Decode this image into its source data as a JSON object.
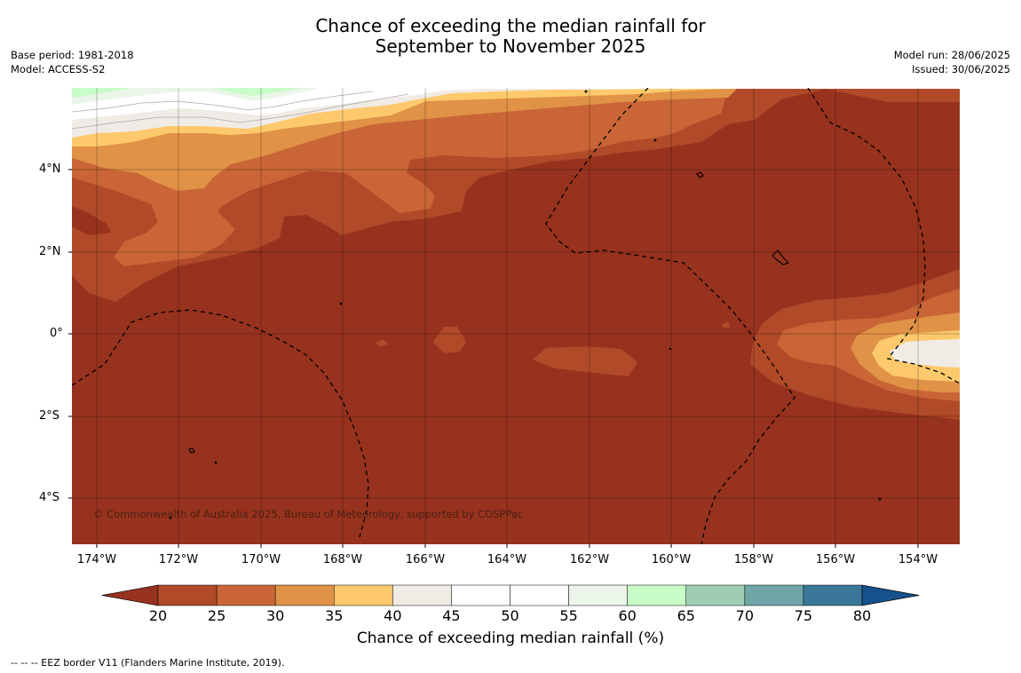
{
  "title_line1": "Chance of exceeding the median rainfall for",
  "title_line2": "September to November 2025",
  "meta_left": [
    "Base period: 1981-2018",
    "Model: ACCESS-S2"
  ],
  "meta_right": [
    "Model run: 28/06/2025",
    "Issued: 30/06/2025"
  ],
  "lat_labels": [
    "4°N",
    "2°N",
    "0°",
    "2°S",
    "4°S"
  ],
  "lon_labels": [
    "174°W",
    "172°W",
    "170°W",
    "168°W",
    "166°W",
    "164°W",
    "162°W",
    "160°W",
    "158°W",
    "156°W",
    "154°W"
  ],
  "copyright": "© Commonwealth of Australia 2025, Bureau of Meteorology, supported by COSPPac",
  "colorbar": {
    "ticks": [
      "20",
      "25",
      "30",
      "35",
      "40",
      "45",
      "50",
      "55",
      "60",
      "65",
      "70",
      "75",
      "80"
    ],
    "colors": [
      "#97321f",
      "#b04a28",
      "#c96536",
      "#e09247",
      "#fdc96c",
      "#f0ebe5",
      "#ffffff",
      "#ffffff",
      "#ebf5e9",
      "#c8fdc8",
      "#9ecdb4",
      "#6ea5a7",
      "#3b7799",
      "#16518b"
    ],
    "label": "Chance of exceeding median rainfall (%)"
  },
  "footnote": "--  --  -- EEZ border V11 (Flanders Marine Institute, 2019)."
}
